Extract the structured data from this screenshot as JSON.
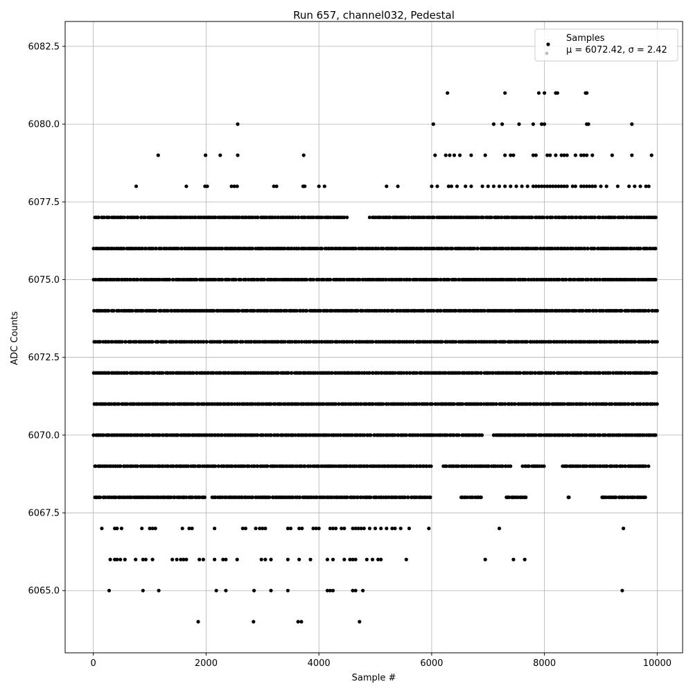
{
  "chart_data": {
    "type": "scatter",
    "title": "Run 657, channel032, Pedestal",
    "xlabel": "Sample #",
    "ylabel": "ADC Counts",
    "xlim": [
      -500,
      10450
    ],
    "ylim": [
      6063.0,
      6083.3
    ],
    "xticks": [
      0,
      2000,
      4000,
      6000,
      8000,
      10000
    ],
    "yticks": [
      6065.0,
      6067.5,
      6070.0,
      6072.5,
      6075.0,
      6077.5,
      6080.0,
      6082.5
    ],
    "grid": true,
    "legend_position": "top-right",
    "marker_color": "#000000",
    "grid_color": "#b0b0b0",
    "legend": {
      "title": "Samples",
      "entries": [
        "μ = 6072.42, σ = 2.42"
      ]
    },
    "n_samples": 10000,
    "levels": [
      {
        "y": 6071,
        "x_ranges": [
          [
            0,
            10000
          ]
        ]
      },
      {
        "y": 6072,
        "x_ranges": [
          [
            0,
            10000
          ]
        ]
      },
      {
        "y": 6073,
        "x_ranges": [
          [
            0,
            10000
          ]
        ]
      },
      {
        "y": 6074,
        "x_ranges": [
          [
            0,
            10000
          ]
        ]
      },
      {
        "y": 6075,
        "x_ranges": [
          [
            0,
            10000
          ]
        ]
      },
      {
        "y": 6076,
        "x_ranges": [
          [
            0,
            10000
          ]
        ]
      },
      {
        "y": 6070,
        "x_ranges": [
          [
            0,
            6900
          ],
          [
            7100,
            10000
          ]
        ]
      },
      {
        "y": 6069,
        "x_ranges": [
          [
            0,
            6000
          ],
          [
            6200,
            7400
          ],
          [
            7600,
            8000
          ],
          [
            8300,
            9850
          ]
        ]
      },
      {
        "y": 6077,
        "x_ranges": [
          [
            0,
            1000
          ],
          [
            1000,
            4500
          ],
          [
            4900,
            10000
          ]
        ]
      },
      {
        "y": 6068,
        "x_ranges": [
          [
            0,
            2000
          ],
          [
            2100,
            6000
          ],
          [
            6500,
            6900
          ],
          [
            7300,
            7700
          ],
          [
            8400,
            8450
          ],
          [
            9000,
            9800
          ]
        ]
      }
    ],
    "sparse_points": [
      {
        "y": 6078,
        "x": [
          760,
          1650,
          1980,
          2020,
          2450,
          2500,
          2550,
          3200,
          3250,
          3720,
          3750,
          4000,
          4100,
          5200,
          5400,
          6000,
          6100,
          6300,
          6350,
          6450,
          6600,
          6700,
          6900,
          7000,
          7100,
          7200,
          7300,
          7400,
          7500,
          7600,
          7700,
          7800,
          7850,
          7900,
          7950,
          8000,
          8050,
          8100,
          8150,
          8200,
          8250,
          8300,
          8350,
          8400,
          8500,
          8550,
          8650,
          8700,
          8750,
          8800,
          8850,
          8900,
          9000,
          9100,
          9300,
          9500,
          9600,
          9700,
          9800,
          9850
        ]
      },
      {
        "y": 6079,
        "x": [
          1150,
          1990,
          2250,
          2560,
          3730,
          6060,
          6250,
          6320,
          6400,
          6500,
          6700,
          6950,
          7300,
          7400,
          7450,
          7800,
          7850,
          8050,
          8100,
          8200,
          8300,
          8350,
          8400,
          8550,
          8650,
          8700,
          8750,
          8850,
          9200,
          9550,
          9900
        ]
      },
      {
        "y": 6080,
        "x": [
          2560,
          6030,
          7100,
          7250,
          7550,
          7800,
          7950,
          8000,
          8750,
          8780,
          9550
        ]
      },
      {
        "y": 6081,
        "x": [
          6280,
          7300,
          7900,
          8000,
          8200,
          8230,
          8730,
          8750
        ]
      },
      {
        "y": 6067,
        "x": [
          150,
          380,
          420,
          500,
          860,
          1000,
          1050,
          1100,
          1580,
          1700,
          1750,
          2150,
          2650,
          2700,
          2880,
          2950,
          3000,
          3050,
          3450,
          3500,
          3650,
          3700,
          3900,
          3950,
          4000,
          4200,
          4250,
          4300,
          4400,
          4450,
          4600,
          4650,
          4700,
          4750,
          4800,
          4900,
          5000,
          5100,
          5200,
          5300,
          5350,
          5450,
          5600,
          5950,
          7200,
          9400
        ]
      },
      {
        "y": 6066,
        "x": [
          300,
          380,
          420,
          480,
          560,
          750,
          880,
          930,
          1050,
          1400,
          1480,
          1550,
          1600,
          1650,
          1880,
          1950,
          2150,
          2300,
          2350,
          2550,
          2980,
          3050,
          3150,
          3450,
          3650,
          3850,
          4150,
          4250,
          4450,
          4550,
          4600,
          4650,
          4850,
          4950,
          5050,
          5100,
          5550,
          6950,
          7450,
          7650
        ]
      },
      {
        "y": 6065,
        "x": [
          280,
          880,
          1160,
          2180,
          2350,
          2850,
          3150,
          3450,
          4150,
          4200,
          4250,
          4600,
          4650,
          4780,
          9380
        ]
      },
      {
        "y": 6064,
        "x": [
          1860,
          2840,
          3630,
          3690,
          4720
        ]
      }
    ]
  }
}
